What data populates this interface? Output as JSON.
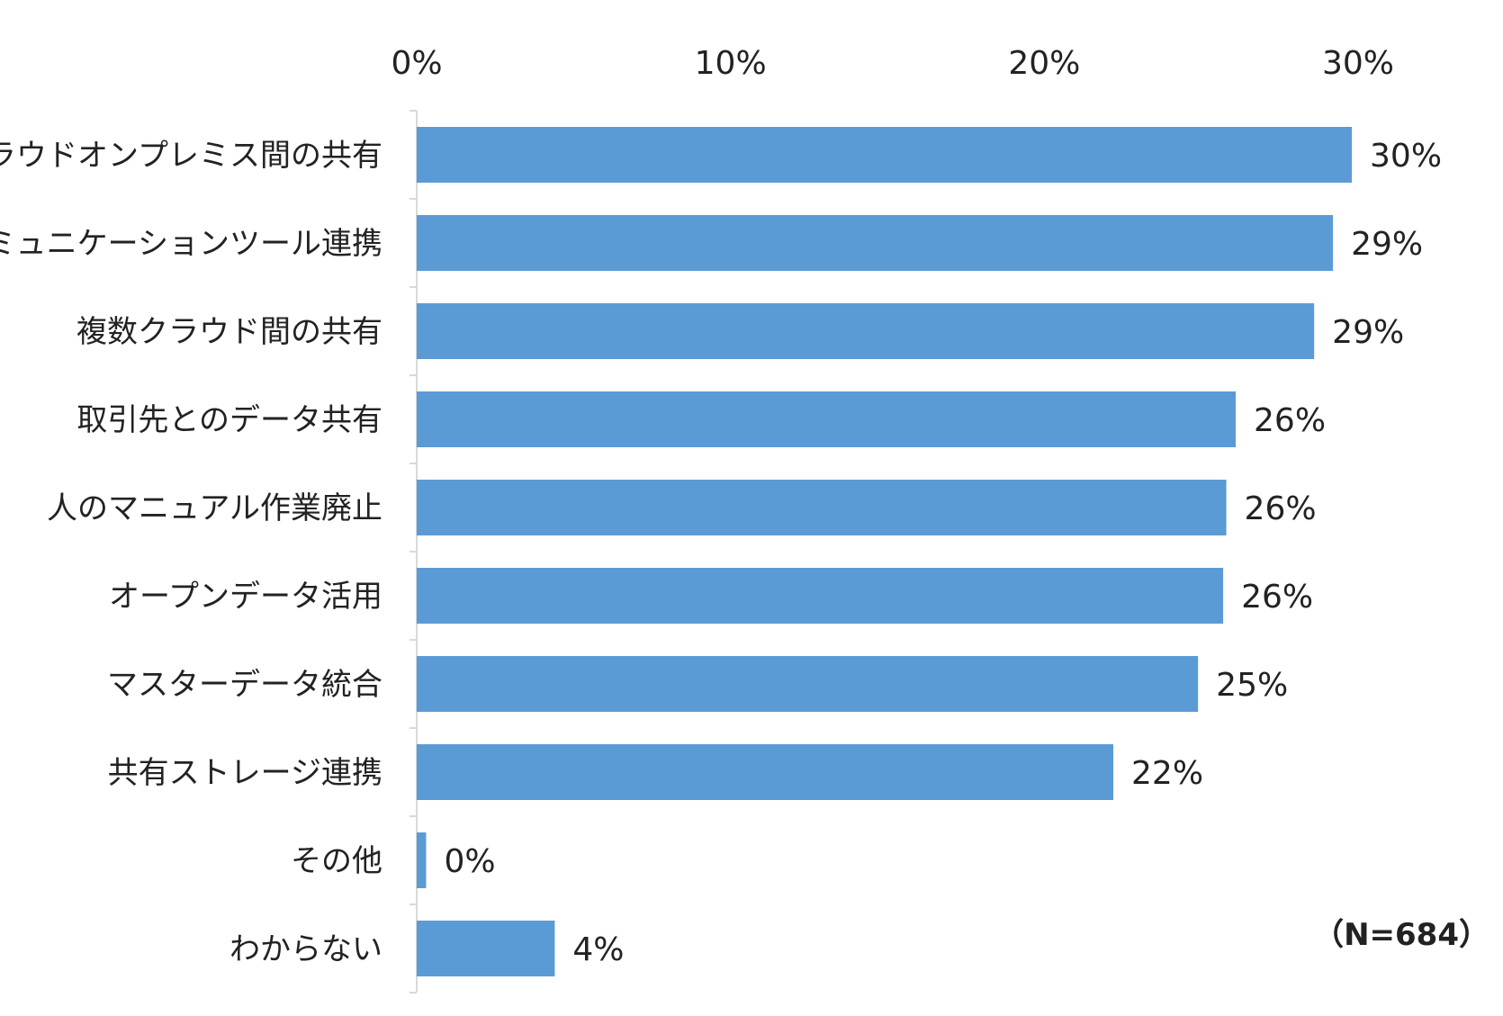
{
  "chart_data": {
    "type": "bar",
    "orientation": "horizontal",
    "categories": [
      "クラウドオンプレミス間の共有",
      "コミュニケーションツール連携",
      "複数クラウド間の共有",
      "取引先とのデータ共有",
      "人のマニュアル作業廃止",
      "オープンデータ活用",
      "マスターデータ統合",
      "共有ストレージ連携",
      "その他",
      "わからない"
    ],
    "values": [
      29.8,
      29.2,
      28.6,
      26.1,
      25.8,
      25.7,
      24.9,
      22.2,
      0.3,
      4.4
    ],
    "data_labels": [
      "30%",
      "29%",
      "29%",
      "26%",
      "26%",
      "26%",
      "25%",
      "22%",
      "0%",
      "4%"
    ],
    "xlim": [
      0,
      30
    ],
    "x_ticks": [
      0,
      10,
      20,
      30
    ],
    "x_tick_labels": [
      "0%",
      "10%",
      "20%",
      "30%"
    ],
    "x_axis_position": "top",
    "grid": false,
    "legend": "none",
    "bar_color": "#5b9bd5",
    "axis_color": "#d9d9d9",
    "title": "",
    "xlabel": "",
    "ylabel": ""
  },
  "note": "（N=684）"
}
